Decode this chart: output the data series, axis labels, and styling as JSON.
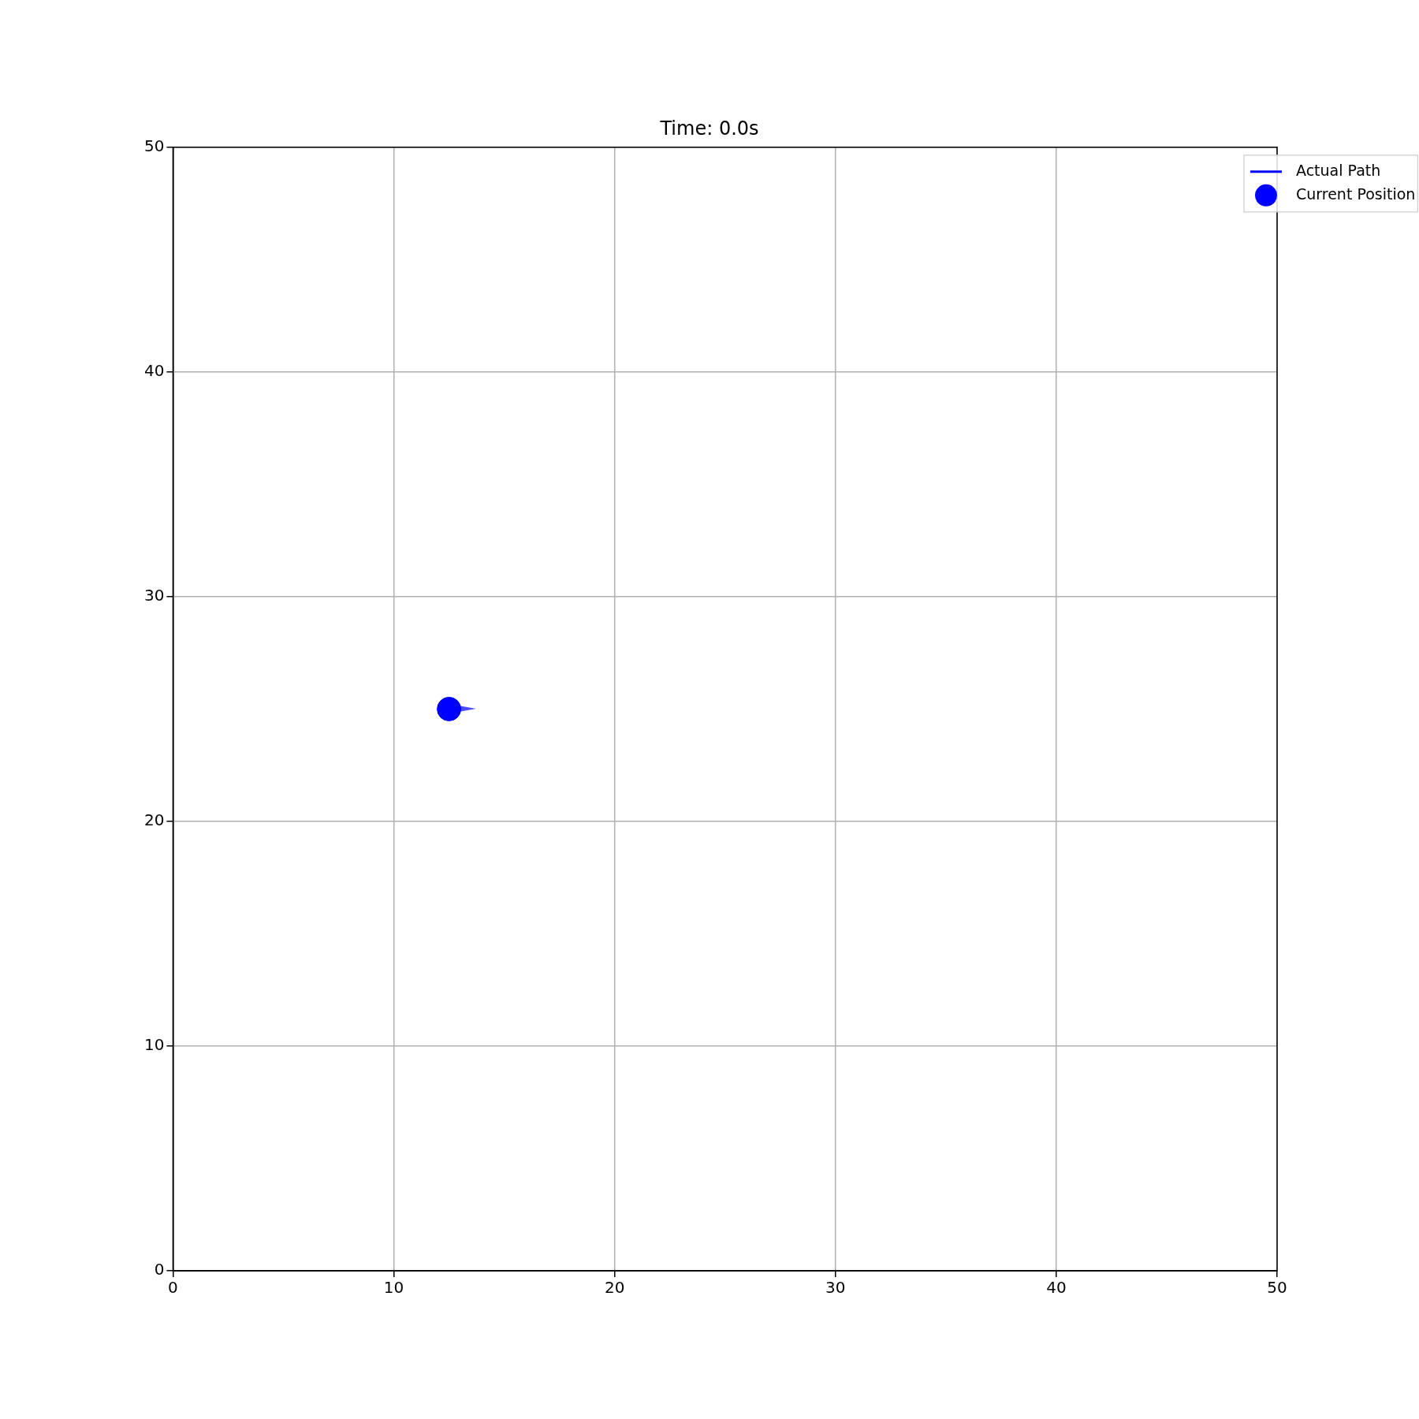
{
  "chart_data": {
    "type": "scatter",
    "title": "Time: 0.0s",
    "xlim": [
      0,
      50
    ],
    "ylim": [
      0,
      50
    ],
    "xticks": [
      0,
      10,
      20,
      30,
      40,
      50
    ],
    "yticks": [
      0,
      10,
      20,
      30,
      40,
      50
    ],
    "grid": true,
    "legend": "top right",
    "marker": "circle",
    "series": [
      {
        "name": "Actual Path",
        "type": "line",
        "color": "#0000ff"
      },
      {
        "name": "Current Position",
        "color": "#0000ff",
        "x": [
          12.5
        ],
        "values": [
          25
        ]
      }
    ]
  }
}
